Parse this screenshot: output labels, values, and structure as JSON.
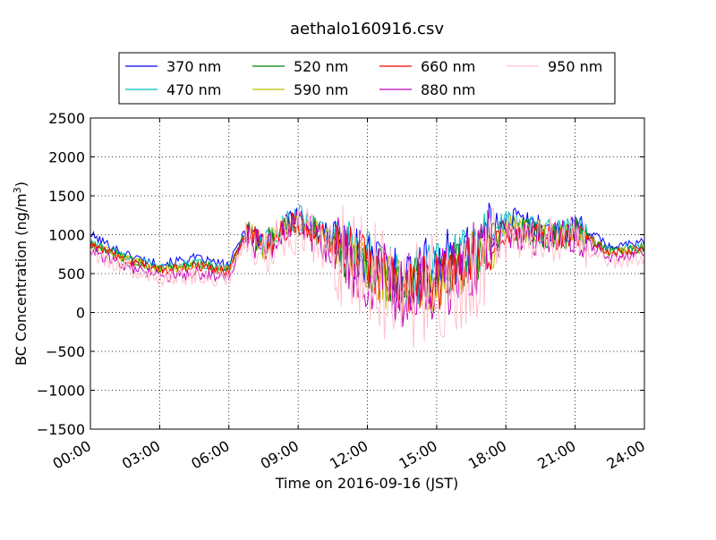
{
  "chart_data": {
    "type": "line",
    "title": "aethalo160916.csv",
    "xlabel": "Time on 2016-09-16 (JST)",
    "ylabel": "BC Concentration (ng/m³)",
    "ylabel_base": "BC Concentration (ng/m",
    "ylabel_sup": "3",
    "ylabel_tail": ")",
    "xlim": [
      "00:00",
      "24:00"
    ],
    "ylim": [
      -1500,
      2500
    ],
    "x_ticks": [
      "00:00",
      "03:00",
      "06:00",
      "09:00",
      "12:00",
      "15:00",
      "18:00",
      "21:00",
      "24:00"
    ],
    "y_ticks": [
      "2500",
      "2000",
      "1500",
      "1000",
      "500",
      "0",
      "−500",
      "−1000",
      "−1500"
    ],
    "y_tick_values": [
      2500,
      2000,
      1500,
      1000,
      500,
      0,
      -500,
      -1000,
      -1500
    ],
    "grid": true,
    "legend_placement": "top-center",
    "series": [
      {
        "name": "370 nm",
        "color": "#0000ff",
        "values": [
          1000,
          750,
          620,
          700,
          600,
          1100,
          900,
          1200,
          950,
          700,
          450,
          650,
          800,
          1250,
          1100,
          1000,
          1150,
          850,
          900
        ]
      },
      {
        "name": "470 nm",
        "color": "#00bfbf",
        "values": [
          900,
          720,
          570,
          640,
          560,
          1050,
          880,
          1250,
          900,
          680,
          400,
          560,
          750,
          1150,
          1050,
          1000,
          1100,
          800,
          850
        ]
      },
      {
        "name": "520 nm",
        "color": "#008000",
        "values": [
          880,
          700,
          560,
          620,
          550,
          1040,
          860,
          1220,
          880,
          640,
          300,
          400,
          700,
          1100,
          1020,
          980,
          1080,
          780,
          830
        ]
      },
      {
        "name": "590 nm",
        "color": "#bfbf00",
        "values": [
          870,
          690,
          550,
          610,
          540,
          1030,
          850,
          1200,
          870,
          620,
          250,
          350,
          680,
          1080,
          1000,
          970,
          1070,
          770,
          820
        ]
      },
      {
        "name": "660 nm",
        "color": "#ff0000",
        "values": [
          860,
          680,
          540,
          600,
          530,
          1020,
          840,
          1180,
          860,
          610,
          280,
          380,
          700,
          1050,
          1000,
          960,
          1060,
          760,
          810
        ]
      },
      {
        "name": "880 nm",
        "color": "#bf00bf",
        "values": [
          800,
          600,
          450,
          500,
          450,
          1000,
          800,
          1150,
          800,
          550,
          300,
          350,
          650,
          1000,
          950,
          950,
          1000,
          700,
          750
        ]
      },
      {
        "name": "950 nm",
        "color": "#ffc0cb",
        "values": [
          750,
          580,
          430,
          480,
          430,
          950,
          780,
          1100,
          780,
          520,
          200,
          300,
          600,
          950,
          900,
          900,
          950,
          650,
          700
        ]
      }
    ],
    "x_hours": [
      0,
      1.5,
      3,
      4.5,
      6,
      6.75,
      7.5,
      9,
      10.5,
      12,
      13.5,
      15,
      16.5,
      18,
      19.5,
      20.5,
      21,
      22.5,
      24
    ]
  }
}
